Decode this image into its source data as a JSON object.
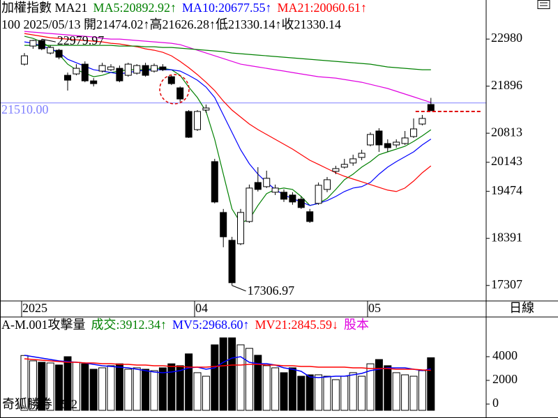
{
  "chart_data": [
    {
      "type": "candlestick",
      "title_items": [
        {
          "text": "加權指數 MA21",
          "color": "#000000"
        },
        {
          "text": "MA5:20892.92↑",
          "color": "#008000"
        },
        {
          "text": "MA10:20677.55↑",
          "color": "#0000ff"
        },
        {
          "text": "MA21:20060.61↑",
          "color": "#ff0000"
        }
      ],
      "subtitle": "100 2025/05/13 開21474.02↑高21626.28↑低21330.14↑收21330.14",
      "categories": [
        "2025",
        null,
        null,
        null,
        null,
        null,
        null,
        null,
        null,
        null,
        null,
        null,
        null,
        null,
        null,
        null,
        null,
        null,
        null,
        null,
        "04",
        null,
        null,
        null,
        null,
        null,
        null,
        null,
        null,
        null,
        null,
        null,
        null,
        null,
        null,
        null,
        null,
        null,
        null,
        null,
        "05",
        null,
        null,
        null,
        null,
        null,
        null,
        null
      ],
      "open": [
        22403,
        22820,
        22948,
        22659,
        22724,
        22146,
        22178,
        22403,
        22018,
        22243,
        22275,
        22307,
        22146,
        22195,
        22371,
        22243,
        22339,
        22114,
        21858,
        21313,
        20896,
        21345,
        20159,
        18988,
        18347,
        18267,
        18780,
        19678,
        19582,
        19454,
        19454,
        19389,
        19293,
        19005,
        19197,
        19518,
        19934,
        20031,
        20127,
        20255,
        20543,
        20864,
        20575,
        20543,
        20575,
        20736,
        21024,
        21474.02
      ],
      "high": [
        22659,
        22964,
        22979.97,
        22836,
        22756,
        22210,
        22403,
        22467,
        22082,
        22435,
        22403,
        22371,
        22435,
        22403,
        22435,
        22419,
        22403,
        22146,
        21890,
        21345,
        21345,
        21473,
        20223,
        19069,
        18427,
        19069,
        19630,
        20031,
        19950,
        19630,
        19518,
        19454,
        19357,
        19069,
        19678,
        19806,
        20063,
        20223,
        20319,
        20431,
        20832,
        20928,
        20672,
        20672,
        20864,
        21153,
        21233,
        21626.28
      ],
      "low": [
        22371,
        22756,
        22724,
        22627,
        22515,
        21794,
        22146,
        21986,
        21890,
        22210,
        22243,
        21986,
        22114,
        22162,
        22114,
        22210,
        22243,
        21922,
        21537,
        20704,
        20864,
        21281,
        19197,
        18187,
        17306.97,
        18235,
        18748,
        19470,
        19550,
        19389,
        19229,
        19165,
        19069,
        18748,
        19165,
        19454,
        19870,
        19998,
        20063,
        20191,
        20511,
        20383,
        20383,
        20479,
        20543,
        20704,
        20992,
        21330.14
      ],
      "close": [
        22595,
        22948,
        22756,
        22788,
        22563,
        22034,
        22307,
        22018,
        21954,
        22371,
        22339,
        22018,
        22403,
        22371,
        22146,
        22371,
        22275,
        21954,
        21601,
        20720,
        21313,
        21393,
        19229,
        18427,
        17370,
        18988,
        19550,
        19518,
        19774,
        19550,
        19293,
        19229,
        19101,
        18780,
        19614,
        19742,
        19998,
        20095,
        20223,
        20351,
        20784,
        20543,
        20479,
        20607,
        20704,
        20912,
        21153,
        21330.14
      ],
      "series": [
        {
          "color": "#008000",
          "values": [
            23044,
            22996,
            22916,
            22788,
            22627,
            22403,
            22275,
            22195,
            22114,
            22146,
            22210,
            22243,
            22275,
            22275,
            22275,
            22307,
            22307,
            22275,
            22146,
            21874,
            21634,
            21313,
            20672,
            19870,
            19069,
            18748,
            18828,
            19149,
            19421,
            19518,
            19550,
            19518,
            19357,
            19149,
            19197,
            19309,
            19518,
            19742,
            19870,
            20031,
            20159,
            20319,
            20383,
            20447,
            20511,
            20624,
            20752,
            20892.92
          ]
        },
        {
          "color": "#0000ff",
          "values": [
            22916,
            22884,
            22820,
            22756,
            22675,
            22515,
            22435,
            22355,
            22275,
            22243,
            22210,
            22178,
            22210,
            22243,
            22259,
            22275,
            22275,
            22275,
            22243,
            22146,
            22034,
            21874,
            21634,
            21233,
            20832,
            20431,
            20111,
            19870,
            19678,
            19518,
            19389,
            19309,
            19229,
            19149,
            19197,
            19261,
            19357,
            19470,
            19550,
            19582,
            19678,
            19870,
            20031,
            20159,
            20271,
            20383,
            20543,
            20677.55
          ]
        },
        {
          "color": "#ff0000",
          "values": [
            23108,
            23076,
            23044,
            23012,
            22996,
            22980,
            22964,
            22948,
            22932,
            22916,
            22884,
            22868,
            22836,
            22804,
            22756,
            22724,
            22675,
            22595,
            22467,
            22323,
            22162,
            21986,
            21794,
            21553,
            21345,
            21185,
            21024,
            20896,
            20784,
            20672,
            20559,
            20447,
            20319,
            20191,
            20095,
            19998,
            19902,
            19822,
            19758,
            19694,
            19630,
            19566,
            19502,
            19470,
            19550,
            19710,
            19902,
            20060.61
          ]
        },
        {
          "color": "#e000e0",
          "values": [
            23156,
            23140,
            23124,
            23108,
            23092,
            23076,
            23060,
            23044,
            23028,
            22996,
            22980,
            22980,
            22964,
            22948,
            22932,
            22916,
            22900,
            22884,
            22852,
            22788,
            22724,
            22659,
            22595,
            22531,
            22467,
            22403,
            22371,
            22339,
            22307,
            22275,
            22243,
            22210,
            22178,
            22146,
            22114,
            22098,
            22082,
            22050,
            22018,
            21986,
            21938,
            21890,
            21842,
            21778,
            21714,
            21650,
            21585,
            21521
          ]
        },
        {
          "color": "#008000",
          "values": [
            22836,
            22836,
            22836,
            22836,
            22836,
            22836,
            22836,
            22836,
            22836,
            22836,
            22836,
            22820,
            22820,
            22820,
            22804,
            22804,
            22788,
            22788,
            22772,
            22756,
            22740,
            22724,
            22708,
            22692,
            22659,
            22643,
            22627,
            22611,
            22595,
            22579,
            22563,
            22547,
            22531,
            22515,
            22499,
            22483,
            22467,
            22451,
            22435,
            22419,
            22403,
            22371,
            22339,
            22323,
            22307,
            22291,
            22275,
            22275
          ]
        }
      ],
      "ylim": [
        16950,
        23880
      ],
      "yticks": [
        17307,
        18391,
        19474,
        20143,
        20813,
        21896,
        22980
      ],
      "hline": {
        "value": 21510,
        "label": "21510.00",
        "color": "#8080ff"
      }
    },
    {
      "type": "bar",
      "title_items": [
        {
          "text": "A-M.001攻擊量",
          "color": "#000000"
        },
        {
          "text": "成交:3912.34↑",
          "color": "#008000"
        },
        {
          "text": "MV5:2968.60↑",
          "color": "#0000ff"
        },
        {
          "text": "MV21:2845.59↓",
          "color": "#ff0000"
        },
        {
          "text": "股本",
          "color": "#e000e0"
        }
      ],
      "values": [
        4100,
        3650,
        3530,
        3470,
        3300,
        4000,
        3530,
        3400,
        2940,
        3060,
        3240,
        3400,
        2940,
        3060,
        2940,
        2820,
        3060,
        3400,
        3240,
        4240,
        2650,
        2350,
        5000,
        5590,
        5590,
        5000,
        4700,
        4120,
        3240,
        3060,
        2650,
        3060,
        2350,
        2470,
        2470,
        2350,
        2060,
        2350,
        2650,
        2350,
        3400,
        3760,
        3240,
        2650,
        2470,
        2350,
        2820,
        3912.34
      ],
      "series": [
        {
          "color": "#0000ff",
          "values": [
            4116,
            3998,
            3881,
            3763,
            3646,
            3587,
            3528,
            3469,
            3352,
            3234,
            3175,
            3116,
            3058,
            2940,
            2822,
            2705,
            2646,
            2705,
            2822,
            3058,
            3116,
            2940,
            3058,
            3528,
            3881,
            3998,
            3528,
            3410,
            3410,
            3293,
            3058,
            2940,
            2764,
            2293,
            2234,
            2293,
            2352,
            2352,
            2470,
            2587,
            2822,
            2940,
            3058,
            3058,
            3058,
            2940,
            2822,
            2968.6
          ]
        },
        {
          "color": "#ff0000",
          "values": [
            3822,
            3763,
            3705,
            3646,
            3587,
            3528,
            3528,
            3469,
            3469,
            3410,
            3410,
            3352,
            3352,
            3293,
            3293,
            3234,
            3234,
            3175,
            3175,
            3116,
            3116,
            3116,
            3175,
            3234,
            3293,
            3293,
            3352,
            3352,
            3293,
            3293,
            3234,
            3234,
            3175,
            3175,
            3116,
            3116,
            3116,
            3116,
            3058,
            3058,
            2999,
            2999,
            2999,
            2940,
            2940,
            2940,
            2881,
            2845.59
          ]
        }
      ],
      "ylim": [
        0,
        7350
      ],
      "yticks": [
        0,
        2000,
        4000
      ]
    }
  ],
  "period": "日線",
  "footer": "奇狐勝券 v5.2"
}
